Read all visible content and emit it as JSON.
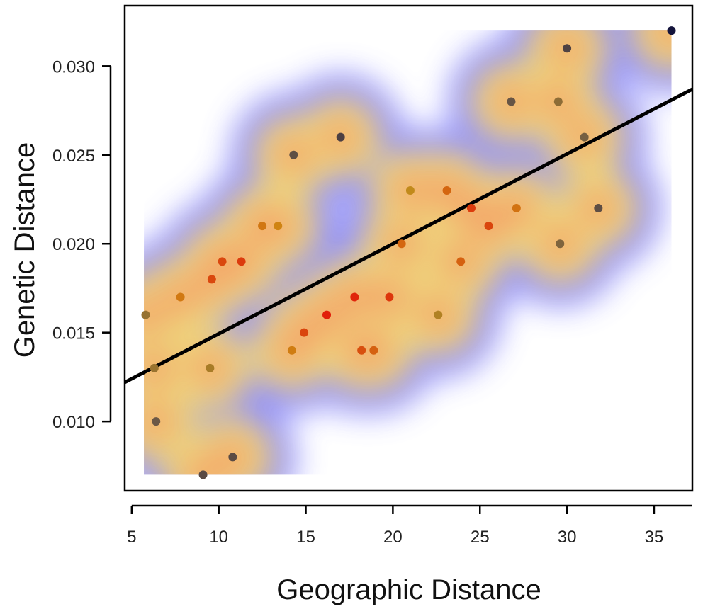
{
  "chart_data": {
    "type": "scatter",
    "xlabel": "Geographic Distance",
    "ylabel": "Genetic Distance",
    "xlim": [
      4.6,
      37.2
    ],
    "ylim": [
      0.0061,
      0.0334
    ],
    "xticks": [
      5,
      10,
      15,
      20,
      25,
      30,
      35
    ],
    "yticks": [
      0.01,
      0.015,
      0.02,
      0.025,
      0.03
    ],
    "xtick_labels": [
      "5",
      "10",
      "15",
      "20",
      "25",
      "30",
      "35"
    ],
    "ytick_labels": [
      "0.010",
      "0.015",
      "0.020",
      "0.025",
      "0.030"
    ],
    "grid": false,
    "density_overlay": true,
    "density_colors": [
      "#ffffff",
      "#6b6bff",
      "#ffe066",
      "#ff5a4a"
    ],
    "density_extent": {
      "x": [
        5.7,
        36.0
      ],
      "y": [
        0.007,
        0.032
      ]
    },
    "trend_line": {
      "x": [
        4.6,
        37.2
      ],
      "y": [
        0.0122,
        0.0287
      ],
      "color": "#000000"
    },
    "points": [
      {
        "x": 5.8,
        "y": 0.016
      },
      {
        "x": 6.3,
        "y": 0.013
      },
      {
        "x": 6.4,
        "y": 0.01
      },
      {
        "x": 7.8,
        "y": 0.017
      },
      {
        "x": 9.1,
        "y": 0.007
      },
      {
        "x": 9.5,
        "y": 0.013
      },
      {
        "x": 9.6,
        "y": 0.018
      },
      {
        "x": 10.2,
        "y": 0.019
      },
      {
        "x": 10.8,
        "y": 0.008
      },
      {
        "x": 11.3,
        "y": 0.019
      },
      {
        "x": 12.5,
        "y": 0.021
      },
      {
        "x": 13.4,
        "y": 0.021
      },
      {
        "x": 14.2,
        "y": 0.014
      },
      {
        "x": 14.3,
        "y": 0.025
      },
      {
        "x": 14.9,
        "y": 0.015
      },
      {
        "x": 16.2,
        "y": 0.016
      },
      {
        "x": 17.0,
        "y": 0.026
      },
      {
        "x": 17.8,
        "y": 0.017
      },
      {
        "x": 18.2,
        "y": 0.014
      },
      {
        "x": 18.9,
        "y": 0.014
      },
      {
        "x": 19.8,
        "y": 0.017
      },
      {
        "x": 20.5,
        "y": 0.02
      },
      {
        "x": 21.0,
        "y": 0.023
      },
      {
        "x": 22.6,
        "y": 0.016
      },
      {
        "x": 23.1,
        "y": 0.023
      },
      {
        "x": 23.9,
        "y": 0.019
      },
      {
        "x": 24.5,
        "y": 0.022
      },
      {
        "x": 25.5,
        "y": 0.021
      },
      {
        "x": 26.8,
        "y": 0.028
      },
      {
        "x": 27.1,
        "y": 0.022
      },
      {
        "x": 29.5,
        "y": 0.028
      },
      {
        "x": 29.6,
        "y": 0.02
      },
      {
        "x": 30.0,
        "y": 0.031
      },
      {
        "x": 31.0,
        "y": 0.026
      },
      {
        "x": 31.8,
        "y": 0.022
      },
      {
        "x": 36.0,
        "y": 0.032
      }
    ]
  }
}
